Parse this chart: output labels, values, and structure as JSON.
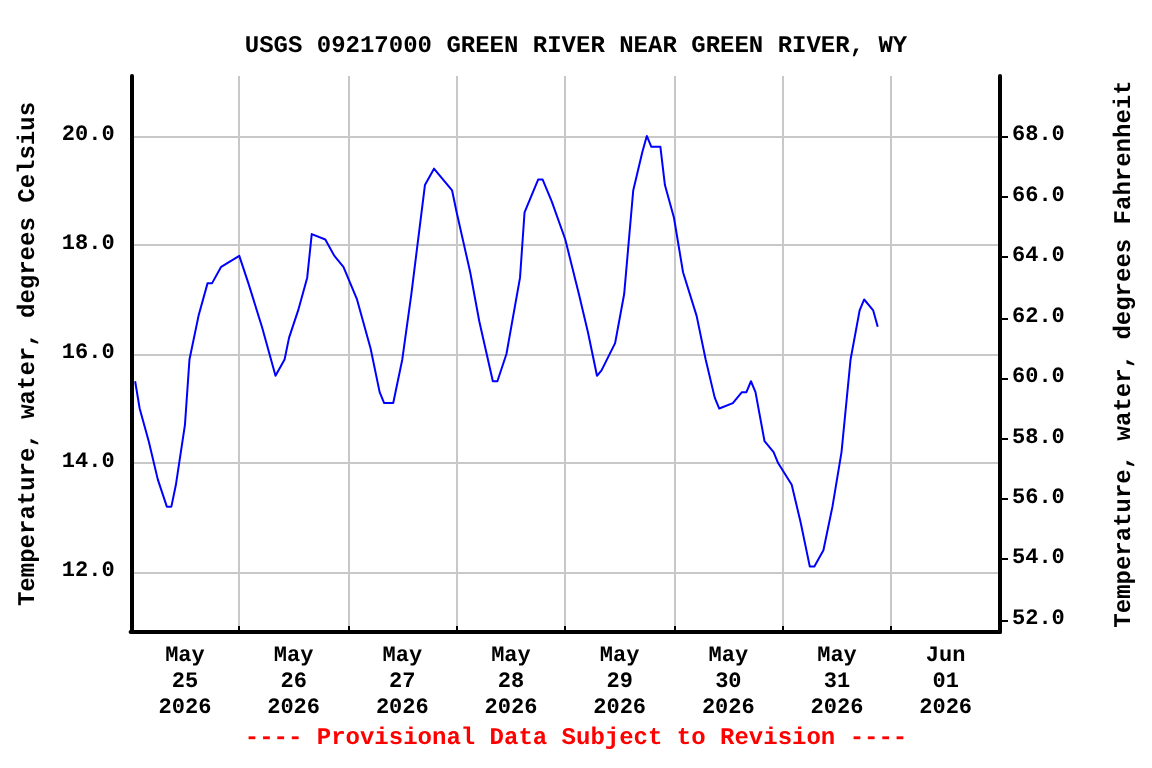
{
  "chart_data": {
    "type": "line",
    "title": "USGS 09217000 GREEN RIVER NEAR GREEN RIVER, WY",
    "ylabel": "Temperature, water, degrees Celsius",
    "y2label": "Temperature, water, degrees Fahrenheit",
    "annotations": [
      "---- Provisional Data Subject to Revision ----"
    ],
    "x": [
      "2026-05-25T01:00",
      "2026-05-25T02:00",
      "2026-05-25T04:00",
      "2026-05-25T06:00",
      "2026-05-25T08:00",
      "2026-05-25T09:00",
      "2026-05-25T10:00",
      "2026-05-25T12:00",
      "2026-05-25T13:00",
      "2026-05-25T15:00",
      "2026-05-25T17:00",
      "2026-05-25T18:00",
      "2026-05-25T20:00",
      "2026-05-25T22:00",
      "2026-05-26T00:00",
      "2026-05-26T02:00",
      "2026-05-26T05:00",
      "2026-05-26T08:00",
      "2026-05-26T10:00",
      "2026-05-26T11:00",
      "2026-05-26T13:00",
      "2026-05-26T15:00",
      "2026-05-26T16:00",
      "2026-05-26T19:00",
      "2026-05-26T21:00",
      "2026-05-26T23:00",
      "2026-05-27T02:00",
      "2026-05-27T05:00",
      "2026-05-27T07:00",
      "2026-05-27T08:00",
      "2026-05-27T10:00",
      "2026-05-27T12:00",
      "2026-05-27T14:00",
      "2026-05-27T17:00",
      "2026-05-27T19:00",
      "2026-05-27T20:00",
      "2026-05-27T23:00",
      "2026-05-28T00:00",
      "2026-05-28T03:00",
      "2026-05-28T05:00",
      "2026-05-28T08:00",
      "2026-05-28T09:00",
      "2026-05-28T11:00",
      "2026-05-28T14:00",
      "2026-05-28T15:00",
      "2026-05-28T18:00",
      "2026-05-28T19:00",
      "2026-05-28T21:00",
      "2026-05-29T00:00",
      "2026-05-29T03:00",
      "2026-05-29T05:00",
      "2026-05-29T07:00",
      "2026-05-29T08:00",
      "2026-05-29T11:00",
      "2026-05-29T13:00",
      "2026-05-29T15:00",
      "2026-05-29T17:00",
      "2026-05-29T18:00",
      "2026-05-29T19:00",
      "2026-05-29T21:00",
      "2026-05-29T22:00",
      "2026-05-30T00:00",
      "2026-05-30T02:00",
      "2026-05-30T05:00",
      "2026-05-30T07:00",
      "2026-05-30T09:00",
      "2026-05-30T10:00",
      "2026-05-30T13:00",
      "2026-05-30T15:00",
      "2026-05-30T16:00",
      "2026-05-30T17:00",
      "2026-05-30T18:00",
      "2026-05-30T20:00",
      "2026-05-30T22:00",
      "2026-05-30T23:00",
      "2026-05-31T02:00",
      "2026-05-31T04:00",
      "2026-05-31T06:00",
      "2026-05-31T07:00",
      "2026-05-31T09:00",
      "2026-05-31T11:00",
      "2026-05-31T13:00",
      "2026-05-31T15:00",
      "2026-05-31T17:00",
      "2026-05-31T18:00",
      "2026-05-31T20:00",
      "2026-05-31T21:00"
    ],
    "series": [
      {
        "color": "#0000ff",
        "values": [
          15.5,
          15.0,
          14.4,
          13.7,
          13.2,
          13.2,
          13.6,
          14.7,
          15.9,
          16.7,
          17.3,
          17.3,
          17.6,
          17.7,
          17.8,
          17.3,
          16.5,
          15.6,
          15.9,
          16.3,
          16.8,
          17.4,
          18.2,
          18.1,
          17.8,
          17.6,
          17.0,
          16.1,
          15.3,
          15.1,
          15.1,
          15.9,
          17.1,
          19.1,
          19.4,
          19.3,
          19.0,
          18.6,
          17.5,
          16.6,
          15.5,
          15.5,
          16.0,
          17.4,
          18.6,
          19.2,
          19.2,
          18.8,
          18.1,
          17.1,
          16.4,
          15.6,
          15.7,
          16.2,
          17.1,
          19.0,
          19.7,
          20.0,
          19.8,
          19.8,
          19.1,
          18.5,
          17.5,
          16.7,
          15.9,
          15.2,
          15.0,
          15.1,
          15.3,
          15.3,
          15.5,
          15.3,
          14.4,
          14.2,
          14.0,
          13.6,
          12.9,
          12.1,
          12.1,
          12.4,
          13.2,
          14.2,
          15.9,
          16.8,
          17.0,
          16.8,
          16.5
        ]
      }
    ],
    "xlim": [
      "2026-05-25T00:00",
      "2026-06-02T00:00"
    ],
    "xticks": [
      {
        "value": "2026-05-25T00:00",
        "label": null
      },
      {
        "value": "2026-05-25T12:00",
        "label": "May\n25\n2026"
      },
      {
        "value": "2026-05-26T00:00",
        "label": null
      },
      {
        "value": "2026-05-26T12:00",
        "label": "May\n26\n2026"
      },
      {
        "value": "2026-05-27T00:00",
        "label": null
      },
      {
        "value": "2026-05-27T12:00",
        "label": "May\n27\n2026"
      },
      {
        "value": "2026-05-28T00:00",
        "label": null
      },
      {
        "value": "2026-05-28T12:00",
        "label": "May\n28\n2026"
      },
      {
        "value": "2026-05-29T00:00",
        "label": null
      },
      {
        "value": "2026-05-29T12:00",
        "label": "May\n29\n2026"
      },
      {
        "value": "2026-05-30T00:00",
        "label": null
      },
      {
        "value": "2026-05-30T12:00",
        "label": "May\n30\n2026"
      },
      {
        "value": "2026-05-31T00:00",
        "label": null
      },
      {
        "value": "2026-05-31T12:00",
        "label": "May\n31\n2026"
      },
      {
        "value": "2026-06-01T00:00",
        "label": null
      },
      {
        "value": "2026-06-01T12:00",
        "label": "Jun\n01\n2026"
      },
      {
        "value": "2026-06-02T00:00",
        "label": null
      }
    ],
    "ylim": [
      10.9,
      21.1
    ],
    "yticks": [
      {
        "value": 12,
        "label": "12.0"
      },
      {
        "value": 14,
        "label": "14.0"
      },
      {
        "value": 16,
        "label": "16.0"
      },
      {
        "value": 18,
        "label": "18.0"
      },
      {
        "value": 20,
        "label": "20.0"
      }
    ],
    "y2lim": [
      51.6,
      70.0
    ],
    "y2ticks": [
      {
        "value": 52,
        "label": "52.0"
      },
      {
        "value": 54,
        "label": "54.0"
      },
      {
        "value": 56,
        "label": "56.0"
      },
      {
        "value": 58,
        "label": "58.0"
      },
      {
        "value": 60,
        "label": "60.0"
      },
      {
        "value": 62,
        "label": "62.0"
      },
      {
        "value": 64,
        "label": "64.0"
      },
      {
        "value": 66,
        "label": "66.0"
      },
      {
        "value": 68,
        "label": "68.0"
      }
    ],
    "grid": true,
    "marker": "none",
    "line_style": "solid"
  }
}
